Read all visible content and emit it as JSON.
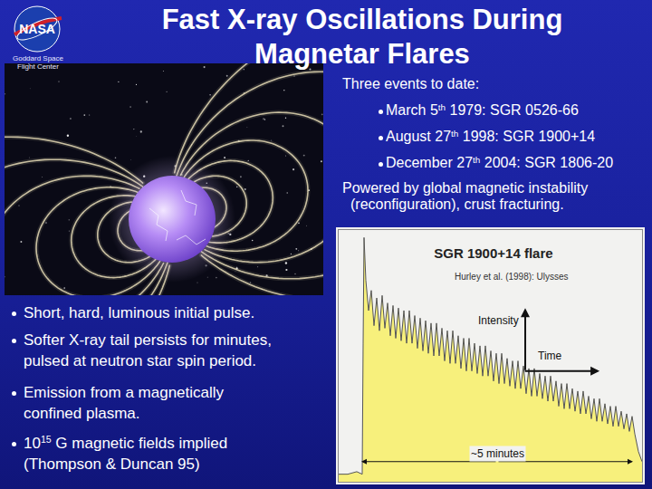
{
  "header": {
    "logo": "NASA",
    "center_lines": [
      "Goddard Space",
      "Flight Center"
    ],
    "title_lines": [
      "Fast X-ray Oscillations During",
      "Magnetar Flares"
    ]
  },
  "events": {
    "intro": "Three events to date:",
    "items": [
      {
        "base": "March 5",
        "sup": "th",
        "rest": " 1979: SGR 0526-66"
      },
      {
        "base": "August 27",
        "sup": "th",
        "rest": " 1998: SGR 1900+14"
      },
      {
        "base": "December 27",
        "sup": "th",
        "rest": " 2004: SGR 1806-20"
      }
    ],
    "note_lines": [
      "Powered by global magnetic instability",
      "(reconfiguration), crust fracturing."
    ]
  },
  "bullets": [
    {
      "lines": [
        "Short, hard, luminous initial pulse."
      ]
    },
    {
      "lines": [
        "Softer X-ray tail persists for minutes,",
        "pulsed at neutron star spin period."
      ]
    },
    {
      "lines": [
        "Emission from a magnetically",
        "confined plasma."
      ]
    },
    {
      "lines": [
        {
          "base": "10",
          "sup": "15",
          "rest": " G magnetic fields implied"
        },
        "(Thompson & Duncan 95)"
      ]
    }
  ],
  "chart_data": {
    "type": "area",
    "title": "SGR 1900+14 flare",
    "source": "Hurley et al. (1998): Ulysses",
    "x_label": "Time",
    "y_label": "Intensity",
    "x": [
      0,
      10,
      20,
      26,
      27,
      28,
      30,
      33,
      36,
      39,
      42,
      45,
      48,
      51,
      54,
      57,
      60,
      63,
      66,
      69,
      72,
      75,
      78,
      81,
      84,
      87,
      90,
      93,
      96,
      99,
      102,
      105,
      108,
      111,
      114,
      117,
      120,
      123,
      126,
      129,
      132,
      135,
      138,
      141,
      144,
      147,
      150,
      153,
      156,
      159,
      162,
      165,
      168,
      171,
      174,
      177,
      180,
      183,
      186,
      189,
      192,
      195,
      198,
      201,
      204,
      207,
      210,
      213,
      216,
      219,
      222,
      225,
      228,
      231,
      234,
      237,
      240,
      243,
      246,
      249,
      252,
      255,
      258,
      261,
      264,
      267,
      270,
      273,
      276,
      279,
      282,
      285,
      288,
      291,
      294,
      297,
      300,
      303,
      306,
      309,
      312,
      315,
      318,
      321,
      324,
      327,
      331,
      335
    ],
    "values": [
      3,
      3,
      4,
      3,
      55,
      97,
      80,
      68,
      76,
      62,
      73,
      60,
      74,
      61,
      71,
      58,
      70,
      57,
      69,
      56,
      68,
      55,
      68,
      55,
      66,
      53,
      65,
      52,
      64,
      51,
      63,
      50,
      63,
      50,
      61,
      48,
      60,
      47,
      60,
      47,
      58,
      45,
      57,
      44,
      57,
      44,
      55,
      43,
      54,
      42,
      54,
      42,
      52,
      40,
      51,
      39,
      51,
      39,
      49,
      38,
      48,
      37,
      48,
      37,
      46,
      35,
      45,
      34,
      45,
      34,
      43,
      33,
      42,
      32,
      42,
      32,
      40,
      30,
      39,
      29,
      39,
      29,
      37,
      28,
      36,
      27,
      36,
      27,
      34,
      25,
      33,
      24,
      33,
      24,
      31,
      23,
      30,
      22,
      30,
      22,
      28,
      21,
      27,
      20,
      26,
      19,
      12,
      8
    ],
    "color": "#f7f07c",
    "xlim": [
      0,
      335
    ],
    "ylim": [
      0,
      100
    ],
    "tick_labels": false,
    "grid": false,
    "span": {
      "x": [
        25,
        325
      ],
      "label": "~5 minutes"
    }
  }
}
